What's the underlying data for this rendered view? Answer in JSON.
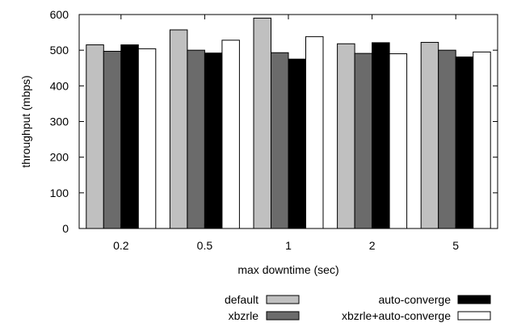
{
  "chart_data": {
    "type": "bar",
    "categories": [
      "0.2",
      "0.5",
      "1",
      "2",
      "5"
    ],
    "series": [
      {
        "name": "default",
        "values": [
          515,
          557,
          590,
          518,
          522
        ],
        "color": "#c0c0c0"
      },
      {
        "name": "xbzrle",
        "values": [
          497,
          500,
          493,
          491,
          500
        ],
        "color": "#6b6b6b"
      },
      {
        "name": "auto-converge",
        "values": [
          515,
          492,
          475,
          521,
          481
        ],
        "color": "#000000"
      },
      {
        "name": "xbzrle+auto-converge",
        "values": [
          504,
          528,
          538,
          490,
          495
        ],
        "color": "#ffffff"
      }
    ],
    "xlabel": "max downtime (sec)",
    "ylabel": "throughput (mbps)",
    "ylim": [
      0,
      600
    ],
    "yticks": [
      "0",
      "100",
      "200",
      "300",
      "400",
      "500",
      "600"
    ],
    "grid": false,
    "legend_position": "bottom"
  }
}
